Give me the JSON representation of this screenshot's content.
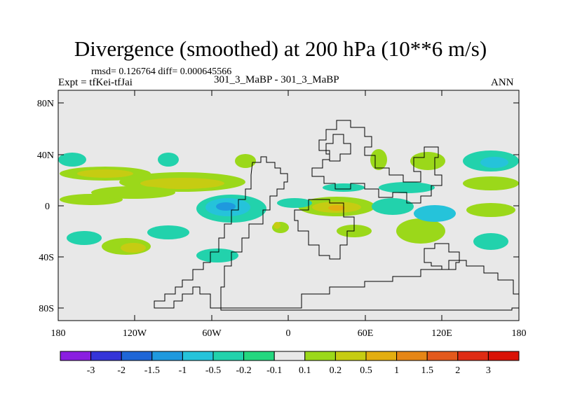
{
  "title": "Divergence (smoothed) at 200 hPa (10**6 m/s)",
  "stats": {
    "rmsd_label": "rmsd= 0.126764",
    "diff_label": "diff= 0.000645566"
  },
  "experiment": "Expt = tfKei-tfJai",
  "case": "301_3_MaBP - 301_3_MaBP",
  "season": "ANN",
  "axes": {
    "lat_ticks": [
      "80N",
      "40N",
      "0",
      "40S",
      "80S"
    ],
    "lon_ticks": [
      "180",
      "120W",
      "60W",
      "0",
      "60E",
      "120E",
      "180"
    ]
  },
  "colorbar": {
    "labels": [
      "-3",
      "-2",
      "-1.5",
      "-1",
      "-0.5",
      "-0.2",
      "-0.1",
      "0.1",
      "0.2",
      "0.5",
      "1",
      "1.5",
      "2",
      "3"
    ],
    "colors": [
      "#8a1fe0",
      "#3535d8",
      "#1f66d6",
      "#1f99de",
      "#25c3da",
      "#22d2ac",
      "#24d77f",
      "#e8e8e8",
      "#9bd81a",
      "#c6cc12",
      "#e3ae10",
      "#e68616",
      "#e3591c",
      "#df2c14",
      "#d91206"
    ]
  },
  "colors": {
    "background_field": "#e8e8e8",
    "coastline": "#000000"
  }
}
